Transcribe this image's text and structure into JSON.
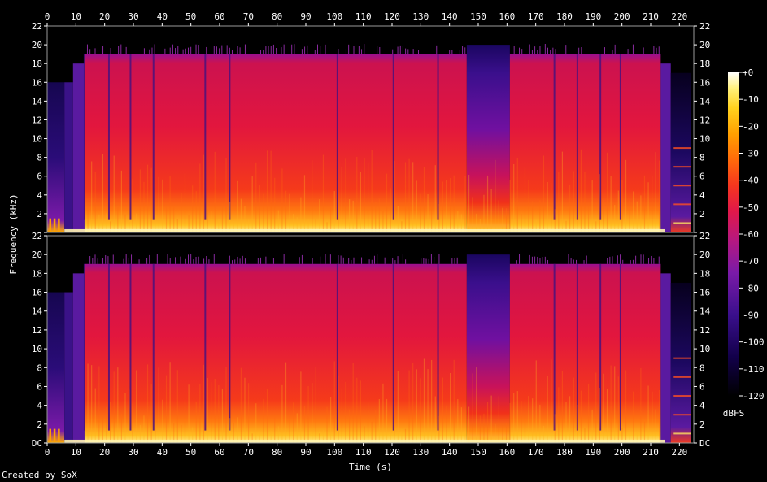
{
  "chart_data": {
    "type": "heatmap",
    "title": "",
    "xlabel": "Time (s)",
    "ylabel": "Frequency (kHz)",
    "xlim": [
      0,
      225
    ],
    "ylim": [
      0,
      22
    ],
    "x_ticks": [
      "0",
      "10",
      "20",
      "30",
      "40",
      "50",
      "60",
      "70",
      "80",
      "90",
      "100",
      "110",
      "120",
      "130",
      "140",
      "150",
      "160",
      "170",
      "180",
      "190",
      "200",
      "210",
      "220"
    ],
    "y_ticks": [
      "DC",
      "2",
      "4",
      "6",
      "8",
      "10",
      "12",
      "14",
      "16",
      "18",
      "20",
      "22"
    ],
    "channels": [
      {
        "channel": 1,
        "bandwidth_khz": 19,
        "quiet_intervals_s": [
          [
            146,
            161
          ]
        ]
      },
      {
        "channel": 2,
        "bandwidth_khz": 19,
        "quiet_intervals_s": [
          [
            146,
            161
          ]
        ]
      }
    ],
    "colorbar": {
      "label": "dBFS",
      "ticks": [
        "+0",
        "-10",
        "-20",
        "-30",
        "-40",
        "-50",
        "-60",
        "-70",
        "-80",
        "-90",
        "-100",
        "-110",
        "-120"
      ],
      "range": [
        -120,
        0
      ],
      "colors": [
        "#000000",
        "#12004a",
        "#3a0f8c",
        "#7a1aa8",
        "#b51880",
        "#e0184a",
        "#f5361f",
        "#ff6a0a",
        "#ffa000",
        "#ffd21e",
        "#fff07a",
        "#ffffff"
      ]
    }
  },
  "credit": "Created by SoX"
}
